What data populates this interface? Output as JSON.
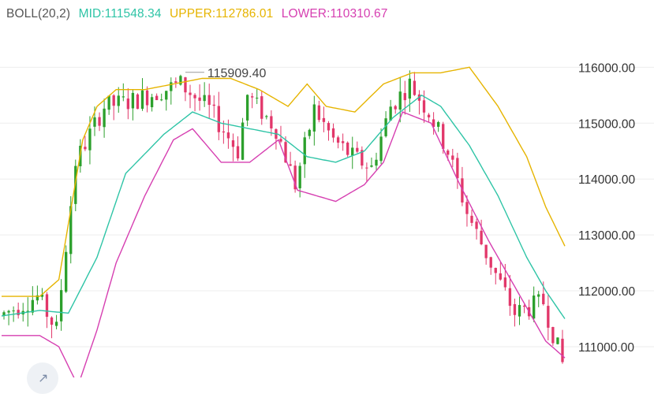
{
  "indicator": {
    "name": "BOLL(20,2)",
    "mid": "MID:111548.34",
    "upper": "UPPER:112786.01",
    "lower": "LOWER:110310.67"
  },
  "colors": {
    "up": "#2ca02c",
    "down": "#e2376a",
    "mid": "#2ec4a6",
    "upper": "#e6b400",
    "lower": "#d63fb1",
    "grid": "#eeeeee",
    "axis_text": "#333333",
    "legend_name": "#555555"
  },
  "chart_data": {
    "type": "candlestick",
    "title": "",
    "y_ticks": [
      "116000.00",
      "115000.00",
      "114000.00",
      "113000.00",
      "112000.00",
      "111000.00"
    ],
    "y_tick_values": [
      116000,
      115000,
      114000,
      113000,
      112000,
      111000
    ],
    "ylim": [
      110450,
      116780
    ],
    "max_annotation": {
      "label": "115909.40",
      "value": 115909.4,
      "index": 38
    },
    "grid": true,
    "x_labels": [],
    "candles_count": 118,
    "ohlc_anchors": [
      [
        0,
        111550
      ],
      [
        8,
        111900
      ],
      [
        12,
        111300
      ],
      [
        16,
        114300
      ],
      [
        22,
        115300
      ],
      [
        28,
        115400
      ],
      [
        38,
        115700
      ],
      [
        44,
        115250
      ],
      [
        50,
        114500
      ],
      [
        52,
        115500
      ],
      [
        58,
        114900
      ],
      [
        62,
        113900
      ],
      [
        66,
        115250
      ],
      [
        70,
        114700
      ],
      [
        74,
        114400
      ],
      [
        78,
        114200
      ],
      [
        82,
        115300
      ],
      [
        86,
        115700
      ],
      [
        90,
        115200
      ],
      [
        94,
        114500
      ],
      [
        98,
        113400
      ],
      [
        104,
        112300
      ],
      [
        108,
        111600
      ],
      [
        114,
        111800
      ],
      [
        118,
        110700
      ]
    ],
    "bands": {
      "upper": [
        [
          0,
          111900
        ],
        [
          8,
          111900
        ],
        [
          12,
          112200
        ],
        [
          14,
          113200
        ],
        [
          17,
          114700
        ],
        [
          20,
          115300
        ],
        [
          24,
          115600
        ],
        [
          30,
          115600
        ],
        [
          36,
          115700
        ],
        [
          42,
          115800
        ],
        [
          48,
          115800
        ],
        [
          54,
          115600
        ],
        [
          60,
          115300
        ],
        [
          64,
          115700
        ],
        [
          68,
          115300
        ],
        [
          74,
          115200
        ],
        [
          80,
          115700
        ],
        [
          86,
          115900
        ],
        [
          92,
          115900
        ],
        [
          98,
          116000
        ],
        [
          104,
          115300
        ],
        [
          110,
          114400
        ],
        [
          114,
          113500
        ],
        [
          118,
          112800
        ]
      ],
      "mid": [
        [
          0,
          111550
        ],
        [
          8,
          111650
        ],
        [
          14,
          111600
        ],
        [
          20,
          112600
        ],
        [
          26,
          114100
        ],
        [
          34,
          114800
        ],
        [
          40,
          115200
        ],
        [
          46,
          115000
        ],
        [
          52,
          114900
        ],
        [
          58,
          114800
        ],
        [
          64,
          114400
        ],
        [
          70,
          114300
        ],
        [
          76,
          114500
        ],
        [
          82,
          115100
        ],
        [
          88,
          115500
        ],
        [
          92,
          115300
        ],
        [
          98,
          114600
        ],
        [
          104,
          113700
        ],
        [
          110,
          112600
        ],
        [
          114,
          112000
        ],
        [
          118,
          111500
        ]
      ],
      "lower": [
        [
          0,
          111200
        ],
        [
          8,
          111200
        ],
        [
          12,
          111000
        ],
        [
          16,
          110300
        ],
        [
          20,
          111300
        ],
        [
          24,
          112500
        ],
        [
          30,
          113700
        ],
        [
          36,
          114700
        ],
        [
          40,
          114900
        ],
        [
          46,
          114300
        ],
        [
          52,
          114300
        ],
        [
          58,
          114700
        ],
        [
          62,
          113800
        ],
        [
          66,
          113700
        ],
        [
          70,
          113600
        ],
        [
          76,
          113900
        ],
        [
          80,
          114300
        ],
        [
          84,
          115200
        ],
        [
          90,
          115000
        ],
        [
          96,
          113900
        ],
        [
          102,
          112900
        ],
        [
          108,
          112000
        ],
        [
          114,
          111100
        ],
        [
          118,
          110800
        ]
      ]
    }
  }
}
